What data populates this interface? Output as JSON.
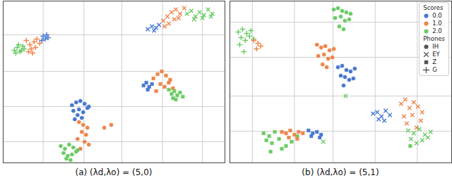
{
  "chart_data": [
    {
      "type": "scatter",
      "title": "(a) (λd,λo) = (5,0)",
      "xlim": [
        0,
        316
      ],
      "ylim": [
        0,
        230
      ],
      "xticks": [
        57,
        115,
        169,
        227,
        284
      ],
      "yticks": [
        30,
        80,
        130,
        182
      ],
      "grid": true,
      "tick_labels": false,
      "series": [
        {
          "phone": "G",
          "score": "0.0",
          "color": "#4878d0",
          "marker": "plus",
          "x": [
            57,
            60,
            62,
            55,
            64
          ],
          "y": [
            180,
            176,
            182,
            174,
            178
          ]
        },
        {
          "phone": "G",
          "score": "1.0",
          "color": "#ee854a",
          "marker": "plus",
          "x": [
            33,
            38,
            44,
            40,
            48,
            52,
            46,
            36,
            42
          ],
          "y": [
            174,
            168,
            172,
            162,
            176,
            170,
            164,
            158,
            156
          ]
        },
        {
          "phone": "G",
          "score": "2.0",
          "color": "#6acc64",
          "marker": "plus",
          "x": [
            16,
            20,
            24,
            28,
            22,
            30,
            18,
            26
          ],
          "y": [
            160,
            164,
            158,
            166,
            168,
            162,
            156,
            160
          ]
        },
        {
          "phone": "EY",
          "score": "0.0",
          "color": "#4878d0",
          "marker": "x",
          "x": [
            206,
            212,
            218,
            222,
            215
          ],
          "y": [
            190,
            194,
            192,
            196,
            188
          ]
        },
        {
          "phone": "EY",
          "score": "1.0",
          "color": "#ee854a",
          "marker": "x",
          "x": [
            228,
            234,
            240,
            246,
            252,
            258,
            236,
            244,
            230,
            250
          ],
          "y": [
            202,
            208,
            214,
            218,
            212,
            220,
            198,
            204,
            194,
            206
          ]
        },
        {
          "phone": "EY",
          "score": "2.0",
          "color": "#6acc64",
          "marker": "x",
          "x": [
            262,
            268,
            274,
            280,
            286,
            292,
            298,
            272,
            284,
            296
          ],
          "y": [
            212,
            216,
            208,
            214,
            210,
            218,
            212,
            204,
            206,
            208
          ]
        },
        {
          "phone": "Z",
          "score": "0.0",
          "color": "#4878d0",
          "marker": "square",
          "x": [
            200,
            204,
            208,
            212,
            206
          ],
          "y": [
            110,
            114,
            108,
            112,
            104
          ]
        },
        {
          "phone": "Z",
          "score": "1.0",
          "color": "#ee854a",
          "marker": "square",
          "x": [
            214,
            220,
            226,
            232,
            238,
            224,
            230,
            236,
            242,
            218
          ],
          "y": [
            120,
            126,
            130,
            124,
            118,
            112,
            108,
            114,
            106,
            102
          ]
        },
        {
          "phone": "Z",
          "score": "2.0",
          "color": "#6acc64",
          "marker": "square",
          "x": [
            236,
            240,
            244,
            248,
            252,
            256,
            246,
            242
          ],
          "y": [
            104,
            98,
            102,
            96,
            100,
            94,
            90,
            92
          ]
        },
        {
          "phone": "IH",
          "score": "0.0",
          "color": "#4878d0",
          "marker": "circle",
          "x": [
            98,
            104,
            110,
            116,
            122,
            100,
            108,
            114,
            120,
            106,
            112,
            102
          ],
          "y": [
            82,
            86,
            88,
            84,
            80,
            74,
            76,
            72,
            78,
            68,
            64,
            62
          ]
        },
        {
          "phone": "IH",
          "score": "1.0",
          "color": "#ee854a",
          "marker": "circle",
          "x": [
            108,
            114,
            120,
            112,
            118,
            106,
            116,
            122,
            110,
            144,
            154
          ],
          "y": [
            58,
            54,
            50,
            44,
            40,
            34,
            30,
            26,
            20,
            50,
            54
          ]
        },
        {
          "phone": "IH",
          "score": "2.0",
          "color": "#6acc64",
          "marker": "circle",
          "x": [
            82,
            88,
            94,
            100,
            106,
            86,
            92,
            98,
            104,
            90,
            96
          ],
          "y": [
            24,
            20,
            26,
            22,
            18,
            14,
            10,
            12,
            16,
            6,
            4
          ]
        }
      ]
    },
    {
      "type": "scatter",
      "title": "(b) (λd,λo) = (5,1)",
      "xlim": [
        0,
        316
      ],
      "ylim": [
        0,
        230
      ],
      "xticks": [
        32,
        92,
        147,
        207,
        267
      ],
      "yticks": [
        45,
        95,
        150,
        200
      ],
      "grid": true,
      "tick_labels": false,
      "legend": "upper right",
      "legend_groups": [
        {
          "title": "Scores",
          "items": [
            {
              "name": "0.0",
              "color": "#4878d0",
              "marker": "circle"
            },
            {
              "name": "1.0",
              "color": "#ee854a",
              "marker": "circle"
            },
            {
              "name": "2.0",
              "color": "#6acc64",
              "marker": "circle"
            }
          ]
        },
        {
          "title": "Phones",
          "items": [
            {
              "name": "IH",
              "color": "#555555",
              "marker": "circle"
            },
            {
              "name": "EY",
              "color": "#555555",
              "marker": "x"
            },
            {
              "name": "Z",
              "color": "#555555",
              "marker": "square"
            },
            {
              "name": "G",
              "color": "#555555",
              "marker": "plus"
            }
          ]
        }
      ],
      "series": [
        {
          "phone": "IH",
          "score": "2.0",
          "color": "#6acc64",
          "marker": "circle",
          "x": [
            148,
            154,
            160,
            166,
            172,
            150,
            158,
            164,
            170,
            156,
            162
          ],
          "y": [
            218,
            220,
            216,
            214,
            212,
            206,
            208,
            202,
            204,
            194,
            190
          ]
        },
        {
          "phone": "IH",
          "score": "1.0",
          "color": "#ee854a",
          "marker": "circle",
          "x": [
            124,
            130,
            136,
            142,
            148,
            126,
            134,
            140,
            146,
            132,
            138
          ],
          "y": [
            168,
            164,
            166,
            160,
            162,
            152,
            154,
            148,
            150,
            140,
            136
          ]
        },
        {
          "phone": "IH",
          "score": "0.0",
          "color": "#4878d0",
          "marker": "circle",
          "x": [
            154,
            160,
            166,
            172,
            178,
            158,
            164,
            170,
            176,
            162
          ],
          "y": [
            136,
            138,
            132,
            130,
            134,
            124,
            122,
            118,
            120,
            110
          ]
        },
        {
          "phone": "G",
          "score": "2.0",
          "color": "#6acc64",
          "marker": "plus",
          "x": [
            12,
            18,
            24,
            30,
            16,
            22,
            28,
            34,
            14,
            20
          ],
          "y": [
            186,
            190,
            184,
            188,
            178,
            174,
            180,
            176,
            168,
            158
          ]
        },
        {
          "phone": "G",
          "score": "1.0",
          "color": "#ee854a",
          "marker": "plus",
          "x": [
            34,
            40,
            44,
            38
          ],
          "y": [
            174,
            170,
            166,
            162
          ]
        },
        {
          "phone": "Z",
          "score": "2.0",
          "color": "#6acc64",
          "marker": "square",
          "x": [
            48,
            56,
            64,
            52,
            60,
            70,
            80,
            88,
            58,
            74,
            96,
            257
          ],
          "y": [
            42,
            38,
            44,
            32,
            28,
            34,
            24,
            30,
            16,
            20,
            38,
            24
          ]
        },
        {
          "phone": "Z",
          "score": "1.0",
          "color": "#ee854a",
          "marker": "square",
          "x": [
            74,
            80,
            86,
            92,
            98,
            104,
            84,
            96
          ],
          "y": [
            44,
            42,
            46,
            40,
            44,
            42,
            36,
            34
          ]
        },
        {
          "phone": "Z",
          "score": "0.0",
          "color": "#4878d0",
          "marker": "square",
          "x": [
            112,
            118,
            124,
            130,
            116,
            128
          ],
          "y": [
            46,
            42,
            44,
            40,
            38,
            36
          ]
        },
        {
          "phone": "EY",
          "score": "0.0",
          "color": "#4878d0",
          "marker": "x",
          "x": [
            204,
            210,
            216,
            222,
            228,
            212,
            220
          ],
          "y": [
            70,
            72,
            66,
            74,
            68,
            62,
            60
          ]
        },
        {
          "phone": "EY",
          "score": "1.0",
          "color": "#ee854a",
          "marker": "x",
          "x": [
            244,
            250,
            256,
            262,
            268,
            274,
            248,
            260,
            272,
            252,
            266
          ],
          "y": [
            84,
            90,
            78,
            86,
            80,
            72,
            66,
            68,
            60,
            56,
            50
          ]
        },
        {
          "phone": "EY",
          "score": "2.0",
          "color": "#6acc64",
          "marker": "x",
          "x": [
            254,
            262,
            270,
            278,
            286,
            258,
            274,
            282,
            266,
            165,
            133
          ],
          "y": [
            46,
            42,
            48,
            40,
            44,
            34,
            32,
            36,
            28,
            95,
            30
          ]
        }
      ]
    }
  ]
}
